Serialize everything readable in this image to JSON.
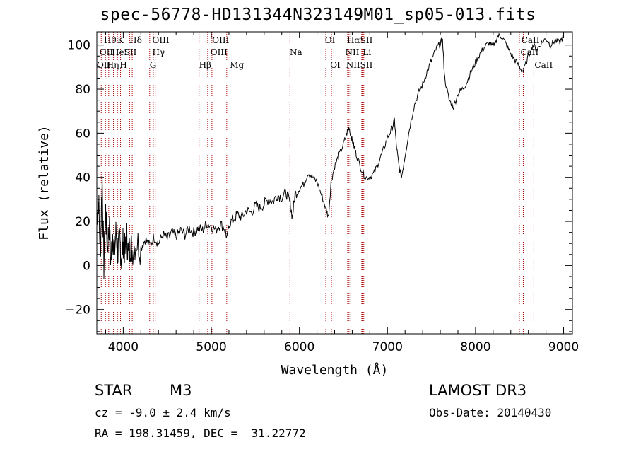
{
  "chart_data": {
    "type": "line",
    "title": "spec-56778-HD131344N323149M01_sp05-013.fits",
    "xlabel": "Wavelength (Å)",
    "ylabel": "Flux (relative)",
    "xlim": [
      3700,
      9100
    ],
    "ylim": [
      -31,
      106
    ],
    "xticks": [
      4000,
      5000,
      6000,
      7000,
      8000,
      9000
    ],
    "yticks": [
      -20,
      0,
      20,
      40,
      60,
      80,
      100
    ],
    "series": [
      {
        "name": "flux",
        "points": [
          [
            3700,
            22
          ],
          [
            3720,
            30
          ],
          [
            3740,
            5
          ],
          [
            3760,
            40
          ],
          [
            3780,
            0
          ],
          [
            3800,
            25
          ],
          [
            3820,
            8
          ],
          [
            3840,
            18
          ],
          [
            3860,
            2
          ],
          [
            3880,
            15
          ],
          [
            3900,
            6
          ],
          [
            3920,
            16
          ],
          [
            3940,
            5
          ],
          [
            3960,
            12
          ],
          [
            3980,
            3
          ],
          [
            4000,
            11
          ],
          [
            4020,
            6
          ],
          [
            4040,
            13
          ],
          [
            4060,
            4
          ],
          [
            4080,
            10
          ],
          [
            4100,
            7
          ],
          [
            4150,
            11
          ],
          [
            4200,
            8
          ],
          [
            4250,
            12
          ],
          [
            4300,
            9
          ],
          [
            4350,
            13
          ],
          [
            4400,
            10
          ],
          [
            4450,
            14
          ],
          [
            4500,
            12
          ],
          [
            4550,
            15
          ],
          [
            4600,
            13
          ],
          [
            4650,
            16
          ],
          [
            4700,
            14
          ],
          [
            4750,
            17
          ],
          [
            4800,
            15
          ],
          [
            4850,
            17
          ],
          [
            4900,
            16
          ],
          [
            4950,
            19
          ],
          [
            5000,
            18
          ],
          [
            5050,
            16
          ],
          [
            5100,
            19
          ],
          [
            5150,
            17
          ],
          [
            5180,
            12
          ],
          [
            5200,
            19
          ],
          [
            5250,
            21
          ],
          [
            5300,
            23
          ],
          [
            5350,
            22
          ],
          [
            5400,
            25
          ],
          [
            5450,
            24
          ],
          [
            5500,
            27
          ],
          [
            5550,
            26
          ],
          [
            5600,
            28
          ],
          [
            5650,
            30
          ],
          [
            5700,
            29
          ],
          [
            5750,
            32
          ],
          [
            5800,
            31
          ],
          [
            5850,
            33
          ],
          [
            5890,
            29
          ],
          [
            5920,
            22
          ],
          [
            5950,
            32
          ],
          [
            6000,
            35
          ],
          [
            6050,
            37
          ],
          [
            6100,
            42
          ],
          [
            6150,
            40
          ],
          [
            6200,
            38
          ],
          [
            6250,
            32
          ],
          [
            6300,
            26
          ],
          [
            6330,
            22
          ],
          [
            6360,
            38
          ],
          [
            6400,
            45
          ],
          [
            6450,
            50
          ],
          [
            6500,
            55
          ],
          [
            6540,
            60
          ],
          [
            6563,
            63
          ],
          [
            6590,
            58
          ],
          [
            6620,
            54
          ],
          [
            6650,
            50
          ],
          [
            6700,
            44
          ],
          [
            6750,
            40
          ],
          [
            6800,
            40
          ],
          [
            6850,
            42
          ],
          [
            6900,
            47
          ],
          [
            6950,
            52
          ],
          [
            7000,
            58
          ],
          [
            7050,
            62
          ],
          [
            7080,
            66
          ],
          [
            7100,
            55
          ],
          [
            7130,
            45
          ],
          [
            7160,
            40
          ],
          [
            7200,
            50
          ],
          [
            7250,
            62
          ],
          [
            7300,
            72
          ],
          [
            7350,
            78
          ],
          [
            7400,
            82
          ],
          [
            7450,
            88
          ],
          [
            7500,
            93
          ],
          [
            7550,
            98
          ],
          [
            7600,
            101
          ],
          [
            7625,
            102
          ],
          [
            7650,
            85
          ],
          [
            7700,
            75
          ],
          [
            7750,
            72
          ],
          [
            7800,
            78
          ],
          [
            7850,
            80
          ],
          [
            7900,
            83
          ],
          [
            7950,
            88
          ],
          [
            8000,
            92
          ],
          [
            8050,
            96
          ],
          [
            8100,
            99
          ],
          [
            8150,
            101
          ],
          [
            8200,
            99
          ],
          [
            8250,
            104
          ],
          [
            8300,
            104
          ],
          [
            8350,
            100
          ],
          [
            8400,
            96
          ],
          [
            8450,
            93
          ],
          [
            8500,
            90
          ],
          [
            8542,
            88
          ],
          [
            8600,
            95
          ],
          [
            8650,
            100
          ],
          [
            8700,
            98
          ],
          [
            8750,
            101
          ],
          [
            8800,
            103
          ],
          [
            8850,
            100
          ],
          [
            8900,
            102
          ],
          [
            8950,
            101
          ],
          [
            9000,
            104
          ]
        ]
      }
    ],
    "lines": [
      {
        "wave": 3750,
        "labels": [
          "OII"
        ]
      },
      {
        "wave": 3798,
        "labels": [
          "Hθ",
          "Hη"
        ]
      },
      {
        "wave": 3835,
        "labels": [
          ""
        ]
      },
      {
        "wave": 3889,
        "labels": [
          "HeI"
        ]
      },
      {
        "wave": 3934,
        "labels": [
          "K"
        ]
      },
      {
        "wave": 3969,
        "labels": [
          "H"
        ]
      },
      {
        "wave": 4072,
        "labels": [
          "SII"
        ]
      },
      {
        "wave": 4102,
        "labels": [
          "Hδ"
        ]
      },
      {
        "wave": 4300,
        "labels": [
          "G"
        ]
      },
      {
        "wave": 4341,
        "labels": [
          "Hγ"
        ]
      },
      {
        "wave": 4363,
        "labels": [
          "OIII"
        ]
      },
      {
        "wave": 4861,
        "labels": [
          "Hβ"
        ]
      },
      {
        "wave": 4959,
        "labels": [
          "OIII"
        ]
      },
      {
        "wave": 5007,
        "labels": [
          "OIII"
        ]
      },
      {
        "wave": 5175,
        "labels": [
          "Mg"
        ]
      },
      {
        "wave": 5893,
        "labels": [
          "Na"
        ]
      },
      {
        "wave": 6300,
        "labels": [
          "OI"
        ]
      },
      {
        "wave": 6364,
        "labels": [
          "OI"
        ]
      },
      {
        "wave": 6548,
        "labels": [
          "NII"
        ]
      },
      {
        "wave": 6563,
        "labels": [
          "Hα"
        ]
      },
      {
        "wave": 6583,
        "labels": [
          "NII"
        ]
      },
      {
        "wave": 6708,
        "labels": [
          "Li"
        ]
      },
      {
        "wave": 6716,
        "labels": [
          "SII"
        ]
      },
      {
        "wave": 6731,
        "labels": [
          "SII"
        ]
      },
      {
        "wave": 8498,
        "labels": [
          "CaII"
        ]
      },
      {
        "wave": 8542,
        "labels": [
          "CaII"
        ]
      },
      {
        "wave": 8662,
        "labels": [
          "CaII"
        ]
      }
    ],
    "line_label_rows": [
      [
        {
          "text": "Hθ",
          "wave": 3780
        },
        {
          "text": "K",
          "wave": 3934
        },
        {
          "text": "Hδ",
          "wave": 4070
        },
        {
          "text": "OIII",
          "wave": 4330
        },
        {
          "text": "OIII",
          "wave": 5010
        },
        {
          "text": "OI",
          "wave": 6290
        },
        {
          "text": "Hα",
          "wave": 6540
        },
        {
          "text": "SII",
          "wave": 6690
        },
        {
          "text": "CaII",
          "wave": 8520
        }
      ],
      [
        {
          "text": "OII",
          "wave": 3730
        },
        {
          "text": "HeI",
          "wave": 3870
        },
        {
          "text": "SII",
          "wave": 4010
        },
        {
          "text": "Hγ",
          "wave": 4330
        },
        {
          "text": "OIII",
          "wave": 4990
        },
        {
          "text": "Na",
          "wave": 5890
        },
        {
          "text": "NII",
          "wave": 6520
        },
        {
          "text": "Li",
          "wave": 6720
        },
        {
          "text": "CaII",
          "wave": 8510
        }
      ],
      [
        {
          "text": "OII",
          "wave": 3700
        },
        {
          "text": "Hη",
          "wave": 3810
        },
        {
          "text": "H",
          "wave": 3960
        },
        {
          "text": "G",
          "wave": 4300
        },
        {
          "text": "Hβ",
          "wave": 4860
        },
        {
          "text": "Mg",
          "wave": 5210
        },
        {
          "text": "OI",
          "wave": 6350
        },
        {
          "text": "NII",
          "wave": 6530
        },
        {
          "text": "SII",
          "wave": 6690
        },
        {
          "text": "CaII",
          "wave": 8670
        }
      ]
    ],
    "colors": {
      "spectrum": "#000000",
      "lines": "#aa0000",
      "axes": "#000000"
    }
  },
  "info": {
    "object_class": "STAR",
    "subclass": "M3",
    "survey": "LAMOST DR3",
    "cz": "cz = -9.0 ± 2.4 km/s",
    "obs_date": "Obs-Date: 20140430",
    "coords": "RA = 198.31459, DEC =  31.22772"
  }
}
